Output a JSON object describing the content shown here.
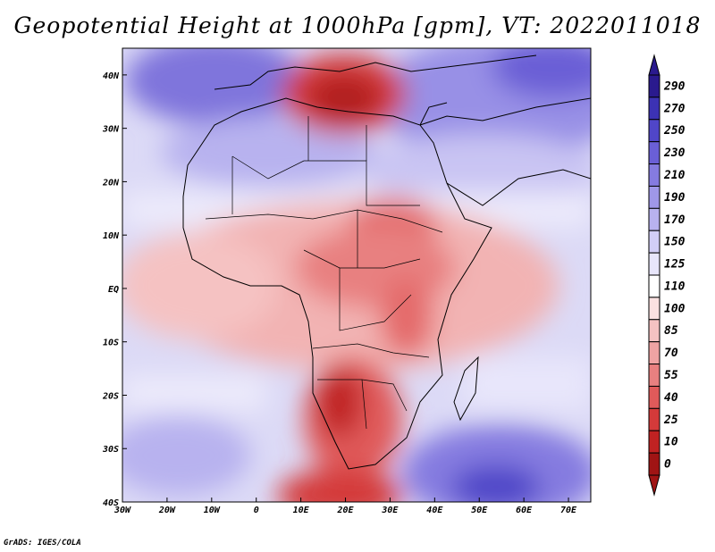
{
  "title": "Geopotential Height at 1000hPa [gpm], VT: 2022011018",
  "credit": "GrADS: IGES/COLA",
  "map": {
    "projection": "lat-lon",
    "lon_range": [
      -30,
      75
    ],
    "lat_range": [
      -40,
      45
    ],
    "lon_ticks": [
      "30W",
      "20W",
      "10W",
      "0",
      "10E",
      "20E",
      "30E",
      "40E",
      "50E",
      "60E",
      "70E"
    ],
    "lat_ticks": [
      "40S",
      "30S",
      "20S",
      "10S",
      "EQ",
      "10N",
      "20N",
      "30N",
      "40N"
    ]
  },
  "colorbar": {
    "levels": [
      "290",
      "270",
      "250",
      "230",
      "210",
      "190",
      "170",
      "150",
      "125",
      "110",
      "100",
      "85",
      "70",
      "55",
      "40",
      "25",
      "10",
      "0"
    ],
    "colors": [
      "#2a1a8e",
      "#3c32b4",
      "#5046c8",
      "#6a5fd6",
      "#857be0",
      "#9f97e8",
      "#b8b2ef",
      "#d2cef6",
      "#e8e6fb",
      "#ffffff",
      "#fbe1e1",
      "#f5c2c2",
      "#efa3a3",
      "#e88080",
      "#e05a5a",
      "#d43a3a",
      "#c02222",
      "#a01414"
    ]
  }
}
